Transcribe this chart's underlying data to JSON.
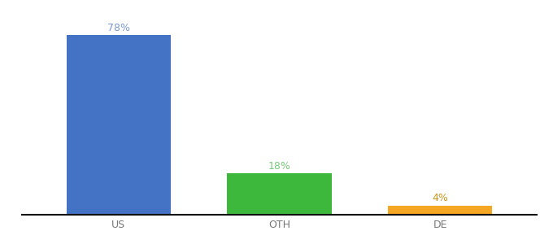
{
  "categories": [
    "US",
    "OTH",
    "DE"
  ],
  "values": [
    78,
    18,
    4
  ],
  "bar_colors": [
    "#4472c4",
    "#3db83d",
    "#f5a623"
  ],
  "label_colors": [
    "#7b96d4",
    "#7bc97b",
    "#c8961e"
  ],
  "labels": [
    "78%",
    "18%",
    "4%"
  ],
  "background_color": "#ffffff",
  "ylim": [
    0,
    88
  ],
  "xlim": [
    -0.6,
    2.6
  ],
  "bar_width": 0.65
}
